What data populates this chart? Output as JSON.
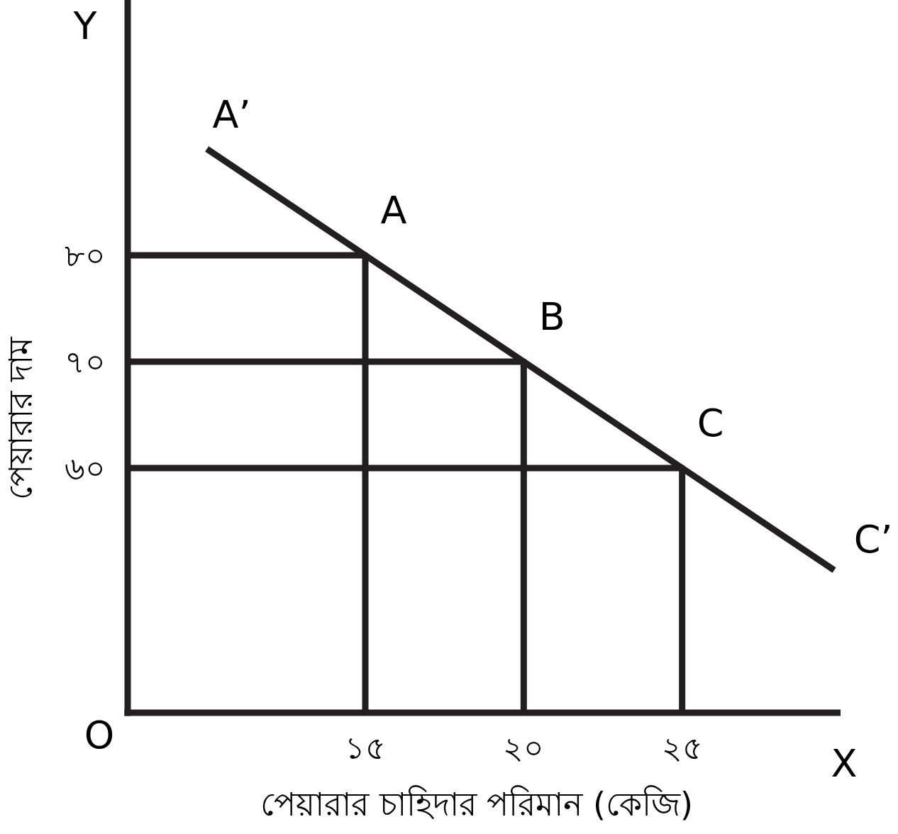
{
  "chart_data": {
    "type": "line",
    "xlabel": "পেয়ারার চাহিদার পরিমান (কেজি)",
    "ylabel": "পেয়ারার দাম",
    "xlim": [
      7.5,
      30
    ],
    "ylim": [
      37,
      104
    ],
    "xticks": [
      {
        "value": 15,
        "label": "১৫"
      },
      {
        "value": 20,
        "label": "২০"
      },
      {
        "value": 25,
        "label": "২৫"
      }
    ],
    "yticks": [
      {
        "value": 60,
        "label": "৬০"
      },
      {
        "value": 70,
        "label": "৭০"
      },
      {
        "value": 80,
        "label": "৮০"
      }
    ],
    "marker": "none",
    "line_style": "solid",
    "series": [
      {
        "color": "#231f20",
        "x": [
          10,
          29.8
        ],
        "values": [
          90,
          50.4
        ]
      },
      {
        "color": "#231f20",
        "x": [
          7.5,
          15,
          15
        ],
        "values": [
          80,
          80,
          37
        ]
      },
      {
        "color": "#231f20",
        "x": [
          7.5,
          20,
          20
        ],
        "values": [
          70,
          70,
          37
        ]
      },
      {
        "color": "#231f20",
        "x": [
          7.5,
          25,
          25
        ],
        "values": [
          60,
          60,
          37
        ]
      }
    ],
    "annotations": [
      "O",
      "X",
      "Y",
      {
        "text": "A’",
        "x": 10,
        "y": 90
      },
      {
        "text": "A",
        "x": 15,
        "y": 80
      },
      {
        "text": "B",
        "x": 20,
        "y": 70
      },
      {
        "text": "C",
        "x": 25,
        "y": 60
      },
      {
        "text": "C’",
        "x": 29.8,
        "y": 50.4
      }
    ]
  }
}
